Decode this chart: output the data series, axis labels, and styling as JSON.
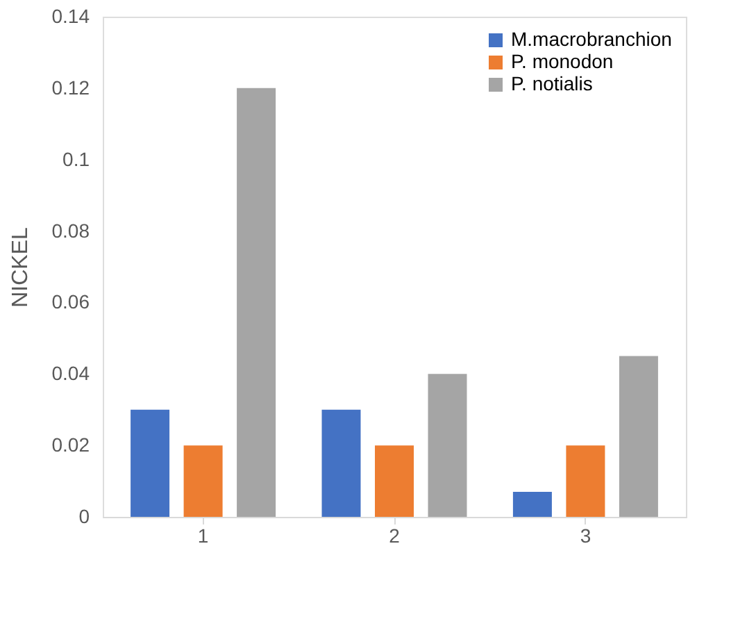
{
  "chart_data": {
    "type": "bar",
    "ylabel": "NICKEL",
    "categories": [
      "1",
      "2",
      "3"
    ],
    "series": [
      {
        "name": "M.macrobranchion",
        "color": "#4472c4",
        "values": [
          0.03,
          0.03,
          0.007
        ]
      },
      {
        "name": "P. monodon",
        "color": "#ed7d31",
        "values": [
          0.02,
          0.02,
          0.02
        ]
      },
      {
        "name": "P. notialis",
        "color": "#a5a5a5",
        "values": [
          0.12,
          0.04,
          0.045
        ]
      }
    ],
    "ylim": [
      0,
      0.14
    ],
    "yticks": [
      0,
      0.02,
      0.04,
      0.06,
      0.08,
      0.1,
      0.12,
      0.14
    ],
    "grid": false,
    "legend": "top right"
  }
}
